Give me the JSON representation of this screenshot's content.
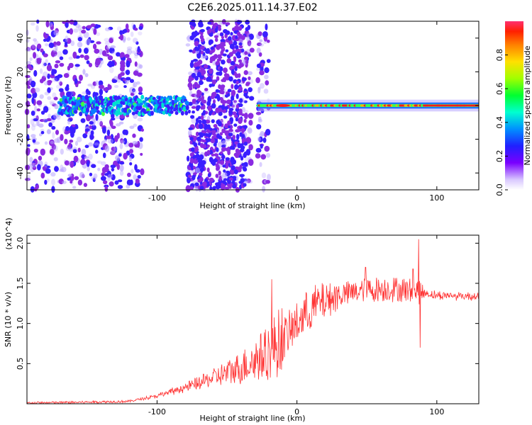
{
  "title": "C2E6.2025.011.14.37.E02",
  "chart_data": [
    {
      "type": "heatmap",
      "xlabel": "Height of straight line (km)",
      "ylabel": "Frequency (Hz)",
      "xlim": [
        -193,
        130
      ],
      "ylim": [
        -50,
        50
      ],
      "xticks": [
        -100,
        0,
        100
      ],
      "yticks": [
        -40,
        -20,
        0,
        20,
        40
      ],
      "colorbar": {
        "label": "Normalized spectral amplitude",
        "range": [
          0,
          1
        ],
        "ticks": [
          0,
          0.2,
          0.4,
          0.6,
          0.8
        ]
      },
      "colors": {
        "low": "#b9a5ff",
        "mid_low": "#6f00ff",
        "mid": "#1c86ff",
        "mid_high": "#00ff66",
        "high": "#ff0000"
      },
      "gaps_km": [
        [
          -110,
          -78
        ],
        [
          -32,
          -28
        ]
      ]
    },
    {
      "type": "line",
      "xlabel": "Height of straight line (km)",
      "ylabel": "SNR (10 * v/v)",
      "y_multiplier": "(x10^4)",
      "xlim": [
        -193,
        130
      ],
      "ylim": [
        0,
        2.1
      ],
      "xticks": [
        -100,
        0,
        100
      ],
      "yticks": [
        0.5,
        1.0,
        1.5,
        2.0
      ],
      "line_color": "#ff3333",
      "series": [
        {
          "values_profile": [
            [
              -193,
              0.01
            ],
            [
              -150,
              0.02
            ],
            [
              -120,
              0.03
            ],
            [
              -100,
              0.1
            ],
            [
              -80,
              0.2
            ],
            [
              -60,
              0.32
            ],
            [
              -40,
              0.45
            ],
            [
              -20,
              0.65
            ],
            [
              -5,
              0.9
            ],
            [
              5,
              1.1
            ],
            [
              15,
              1.25
            ],
            [
              30,
              1.35
            ],
            [
              50,
              1.42
            ],
            [
              70,
              1.43
            ],
            [
              85,
              1.4
            ],
            [
              100,
              1.35
            ],
            [
              130,
              1.34
            ]
          ],
          "peaks": [
            [
              -18,
              1.55
            ],
            [
              49,
              1.7
            ],
            [
              83,
              1.68
            ],
            [
              87,
              2.05
            ],
            [
              88,
              0.7
            ]
          ]
        }
      ]
    }
  ]
}
